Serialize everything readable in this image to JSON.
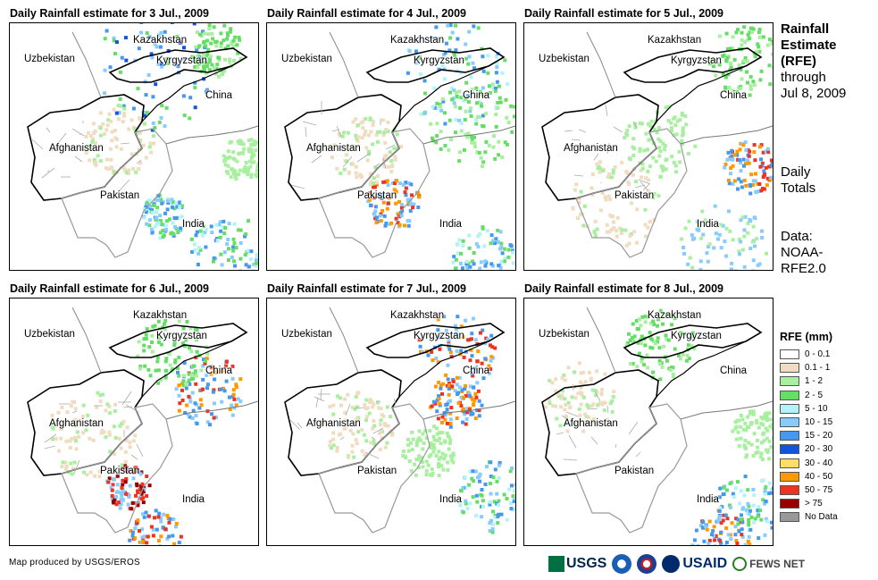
{
  "panels": [
    {
      "title": "Daily Rainfall estimate for 3 Jul., 2009"
    },
    {
      "title": "Daily Rainfall estimate for 4 Jul., 2009"
    },
    {
      "title": "Daily Rainfall estimate for 5 Jul., 2009"
    },
    {
      "title": "Daily Rainfall estimate for 6 Jul., 2009"
    },
    {
      "title": "Daily Rainfall estimate for 7 Jul., 2009"
    },
    {
      "title": "Daily Rainfall estimate for 8 Jul., 2009"
    }
  ],
  "country_labels": {
    "kazakhstan": "Kazakhstan",
    "uzbekistan": "Uzbekistan",
    "kyrgyzstan": "Kyrgyzstan",
    "china": "China",
    "afghanistan": "Afghanistan",
    "pakistan": "Pakistan",
    "india": "India"
  },
  "side": {
    "title_line1": "Rainfall",
    "title_line2": "Estimate",
    "title_line3": "(RFE)",
    "through": "through",
    "date": "Jul 8, 2009",
    "daily_line1": "Daily",
    "daily_line2": "Totals",
    "data_line1": "Data:",
    "data_line2": "NOAA-",
    "data_line3": "RFE2.0"
  },
  "legend": {
    "title": "RFE (mm)",
    "items": [
      {
        "label": "0 - 0.1",
        "color": "#ffffff"
      },
      {
        "label": "0.1 - 1",
        "color": "#f0dcc0"
      },
      {
        "label": "1 - 2",
        "color": "#a8f0a0"
      },
      {
        "label": "2 - 5",
        "color": "#66dd66"
      },
      {
        "label": "5 - 10",
        "color": "#b0f4f8"
      },
      {
        "label": "10 - 15",
        "color": "#88ccff"
      },
      {
        "label": "15 - 20",
        "color": "#4499ee"
      },
      {
        "label": "20 - 30",
        "color": "#1155dd"
      },
      {
        "label": "30 - 40",
        "color": "#ffdd66"
      },
      {
        "label": "40 - 50",
        "color": "#ff9900"
      },
      {
        "label": "50 - 75",
        "color": "#ee3322"
      },
      {
        "label": "> 75",
        "color": "#990000"
      },
      {
        "label": "No Data",
        "color": "#999999"
      }
    ]
  },
  "credit": "Map produced by USGS/EROS",
  "logos": {
    "usgs": "USGS",
    "usaid": "USAID",
    "fews": "FEWS NET"
  }
}
